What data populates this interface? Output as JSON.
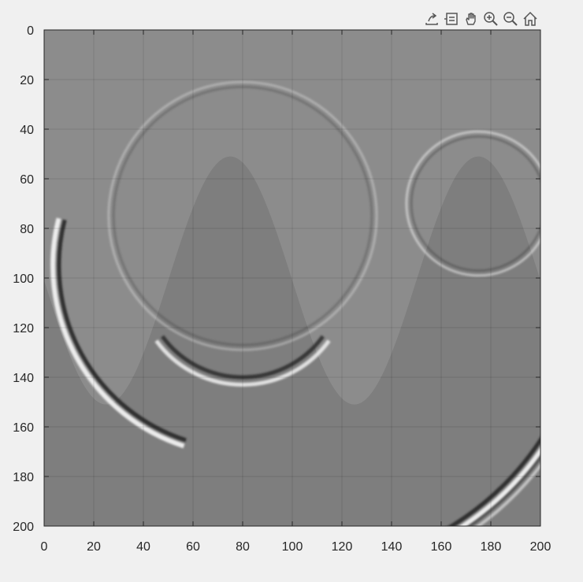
{
  "toolbar": {
    "buttons": [
      {
        "name": "export-icon"
      },
      {
        "name": "data-tips-icon"
      },
      {
        "name": "pan-icon"
      },
      {
        "name": "zoom-in-icon"
      },
      {
        "name": "zoom-out-icon"
      },
      {
        "name": "home-icon"
      }
    ]
  },
  "chart_data": {
    "type": "heatmap",
    "title": "",
    "xlabel": "",
    "ylabel": "",
    "xlim": [
      0,
      200
    ],
    "ylim": [
      0,
      200
    ],
    "y_reversed": true,
    "colormap": "gray",
    "grid": true,
    "xticks": [
      "0",
      "20",
      "40",
      "60",
      "80",
      "100",
      "120",
      "140",
      "160",
      "180",
      "200"
    ],
    "yticks": [
      "0",
      "20",
      "40",
      "60",
      "80",
      "100",
      "120",
      "140",
      "160",
      "180",
      "200"
    ],
    "xtick_values": [
      0,
      20,
      40,
      60,
      80,
      100,
      120,
      140,
      160,
      180,
      200
    ],
    "ytick_values": [
      0,
      20,
      40,
      60,
      80,
      100,
      120,
      140,
      160,
      180,
      200
    ],
    "background_regions": {
      "upper_shade": "#8c8c8c",
      "lower_shade": "#7e7e7e",
      "interface": "sinusoid",
      "interface_crests": [
        [
          75,
          51
        ],
        [
          175,
          51
        ]
      ],
      "interface_troughs": [
        [
          25,
          151
        ],
        [
          125,
          151
        ]
      ]
    },
    "wavefronts": [
      {
        "shape": "circle-arc",
        "center": [
          80,
          95
        ],
        "radius": 74
      },
      {
        "shape": "circle-arc",
        "center": [
          80,
          75
        ],
        "radius": 52
      },
      {
        "shape": "circle-arc",
        "center": [
          175,
          70
        ],
        "radius": 27
      },
      {
        "shape": "reflection",
        "center": [
          80,
          118
        ],
        "radius": 40
      },
      {
        "shape": "bottom-arc",
        "center": [
          104,
          102
        ],
        "radius": 115
      }
    ]
  }
}
